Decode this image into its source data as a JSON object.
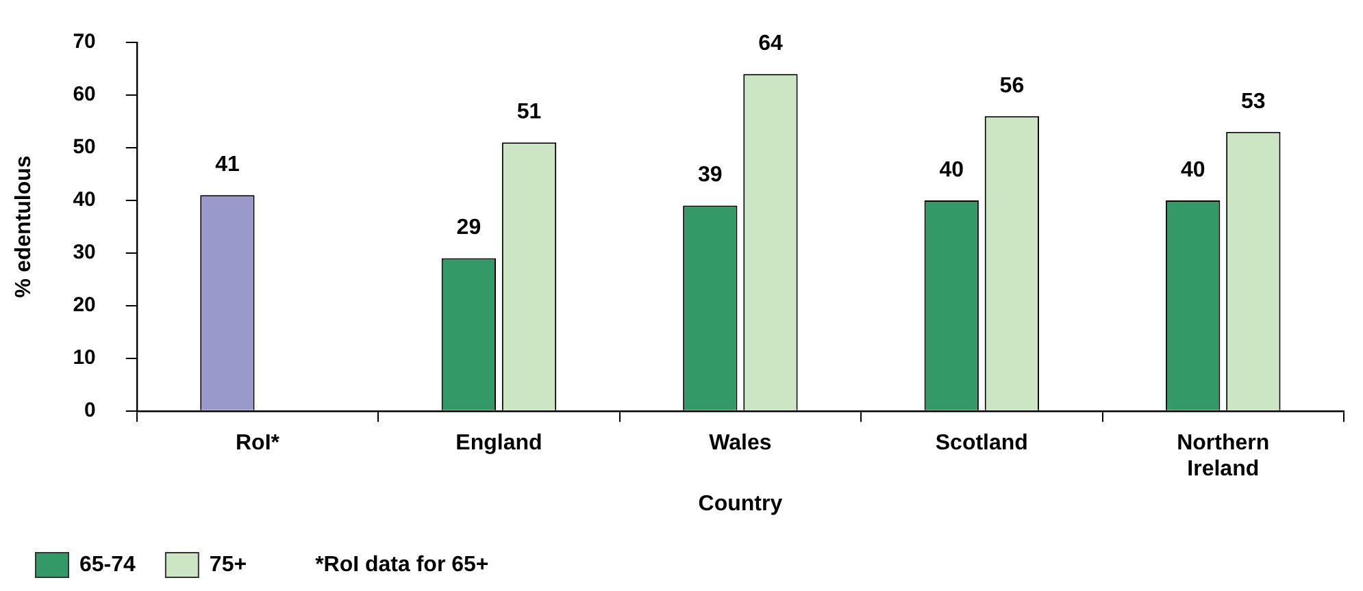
{
  "chart_data": {
    "type": "bar",
    "xlabel": "Country",
    "ylabel": "% edentulous",
    "categories": [
      "RoI*",
      "England",
      "Wales",
      "Scotland",
      "Northern Ireland"
    ],
    "series": [
      {
        "name": "65-74",
        "color": "#339966",
        "colors": [
          "#9999cc",
          "#339966",
          "#339966",
          "#339966",
          "#339966"
        ],
        "values": [
          41,
          29,
          39,
          40,
          40
        ]
      },
      {
        "name": "75+",
        "color": "#cce6c4",
        "values": [
          null,
          51,
          64,
          56,
          53
        ]
      }
    ],
    "ylim": [
      0,
      70
    ],
    "yticks": [
      0,
      10,
      20,
      30,
      40,
      50,
      60,
      70
    ],
    "grid": false,
    "legend": "bottom",
    "data_labels": true,
    "annotations": [
      "*RoI data for 65+"
    ]
  }
}
